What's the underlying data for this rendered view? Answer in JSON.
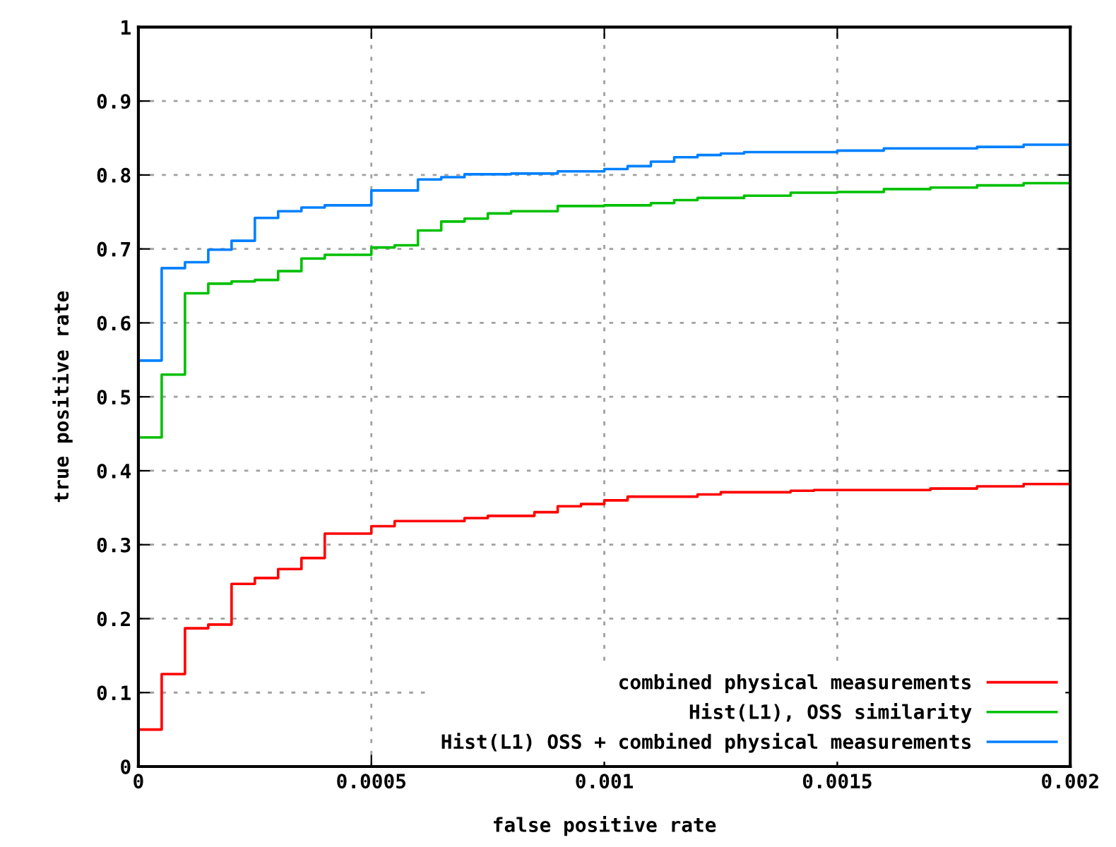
{
  "chart_data": {
    "type": "step",
    "xlabel": "false positive rate",
    "ylabel": "true positive rate",
    "xlim": [
      0,
      0.002
    ],
    "ylim": [
      0,
      1
    ],
    "xticks": [
      {
        "value": 0,
        "label": "0"
      },
      {
        "value": 0.0005,
        "label": "0.0005"
      },
      {
        "value": 0.001,
        "label": "0.001"
      },
      {
        "value": 0.0015,
        "label": "0.0015"
      },
      {
        "value": 0.002,
        "label": "0.002"
      }
    ],
    "yticks": [
      0,
      0.1,
      0.2,
      0.3,
      0.4,
      0.5,
      0.6,
      0.7,
      0.8,
      0.9,
      1
    ],
    "grid": true,
    "legend": "bottom right",
    "line_style": "solid",
    "marker": "none",
    "series": [
      {
        "name": "combined physical measurements",
        "color": "#ff0000",
        "x": [
          0,
          5e-05,
          0.0001,
          0.00015,
          0.0002,
          0.00025,
          0.0003,
          0.00035,
          0.0004,
          0.0005,
          0.00055,
          0.0007,
          0.00075,
          0.00085,
          0.0009,
          0.00095,
          0.001,
          0.00105,
          0.0012,
          0.00125,
          0.0014,
          0.00145,
          0.0017,
          0.0018,
          0.0019,
          0.002
        ],
        "values": [
          0.05,
          0.125,
          0.187,
          0.192,
          0.247,
          0.255,
          0.267,
          0.282,
          0.315,
          0.325,
          0.332,
          0.336,
          0.339,
          0.344,
          0.352,
          0.355,
          0.36,
          0.365,
          0.368,
          0.371,
          0.373,
          0.374,
          0.376,
          0.379,
          0.382,
          0.382
        ]
      },
      {
        "name": "Hist(L1), OSS similarity",
        "color": "#00c000",
        "x": [
          0,
          5e-05,
          0.0001,
          0.00015,
          0.0002,
          0.00025,
          0.0003,
          0.00035,
          0.0004,
          0.0005,
          0.00055,
          0.0006,
          0.00065,
          0.0007,
          0.00075,
          0.0008,
          0.0009,
          0.001,
          0.0011,
          0.00115,
          0.0012,
          0.0013,
          0.0014,
          0.0015,
          0.0016,
          0.0017,
          0.0018,
          0.0019,
          0.002
        ],
        "values": [
          0.445,
          0.53,
          0.64,
          0.653,
          0.656,
          0.658,
          0.67,
          0.687,
          0.692,
          0.702,
          0.705,
          0.725,
          0.737,
          0.741,
          0.748,
          0.751,
          0.758,
          0.759,
          0.762,
          0.766,
          0.769,
          0.772,
          0.776,
          0.777,
          0.781,
          0.783,
          0.786,
          0.789,
          0.789
        ]
      },
      {
        "name": "Hist(L1) OSS + combined physical measurements",
        "color": "#0080ff",
        "x": [
          0,
          5e-05,
          0.0001,
          0.00015,
          0.0002,
          0.00025,
          0.0003,
          0.00035,
          0.0004,
          0.0005,
          0.0006,
          0.00065,
          0.0007,
          0.0008,
          0.0009,
          0.001,
          0.00105,
          0.0011,
          0.00115,
          0.0012,
          0.00125,
          0.0013,
          0.0015,
          0.0016,
          0.0018,
          0.0019,
          0.002
        ],
        "values": [
          0.549,
          0.674,
          0.682,
          0.699,
          0.711,
          0.742,
          0.751,
          0.756,
          0.759,
          0.779,
          0.794,
          0.797,
          0.801,
          0.802,
          0.805,
          0.808,
          0.812,
          0.818,
          0.824,
          0.827,
          0.829,
          0.831,
          0.833,
          0.836,
          0.838,
          0.841,
          0.841
        ]
      }
    ]
  }
}
